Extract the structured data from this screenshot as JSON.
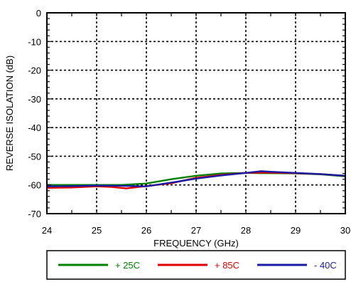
{
  "chart_data": {
    "type": "line",
    "title": "",
    "xlabel": "FREQUENCY (GHz)",
    "ylabel": "REVERSE ISOLATION (dB)",
    "xlim": [
      24,
      30
    ],
    "ylim": [
      -70,
      0
    ],
    "x_ticks": [
      "24",
      "25",
      "26",
      "27",
      "28",
      "29",
      "30"
    ],
    "y_ticks": [
      "0",
      "-10",
      "-20",
      "-30",
      "-40",
      "-50",
      "-60",
      "-70"
    ],
    "grid": true,
    "legend_position": "bottom",
    "series": [
      {
        "name": "+ 25C",
        "color": "#008000",
        "x": [
          24,
          24.5,
          25,
          25.5,
          26,
          26.5,
          27,
          27.5,
          28,
          28.3,
          28.5,
          29,
          29.5,
          30
        ],
        "y": [
          -60.0,
          -60.0,
          -60.0,
          -60.0,
          -59.5,
          -58.0,
          -56.8,
          -56.0,
          -55.8,
          -55.9,
          -55.9,
          -56.0,
          -56.3,
          -57.0
        ]
      },
      {
        "name": "+ 85C",
        "color": "#e00000",
        "x": [
          24,
          24.5,
          25,
          25.3,
          25.6,
          26,
          26.5,
          27,
          27.5,
          28,
          28.3,
          28.5,
          29,
          29.5,
          30
        ],
        "y": [
          -61.0,
          -60.9,
          -60.5,
          -60.7,
          -61.2,
          -60.4,
          -59.4,
          -57.5,
          -56.5,
          -55.8,
          -55.7,
          -55.7,
          -55.9,
          -56.2,
          -56.8
        ]
      },
      {
        "name": "- 40C",
        "color": "#1a1aa6",
        "x": [
          24,
          24.5,
          25,
          25.5,
          26,
          26.5,
          27,
          27.5,
          28,
          28.3,
          28.5,
          29,
          29.5,
          30
        ],
        "y": [
          -60.5,
          -60.4,
          -60.2,
          -60.3,
          -60.5,
          -59.2,
          -57.8,
          -56.7,
          -55.8,
          -55.2,
          -55.4,
          -55.8,
          -56.2,
          -56.8
        ]
      }
    ]
  }
}
